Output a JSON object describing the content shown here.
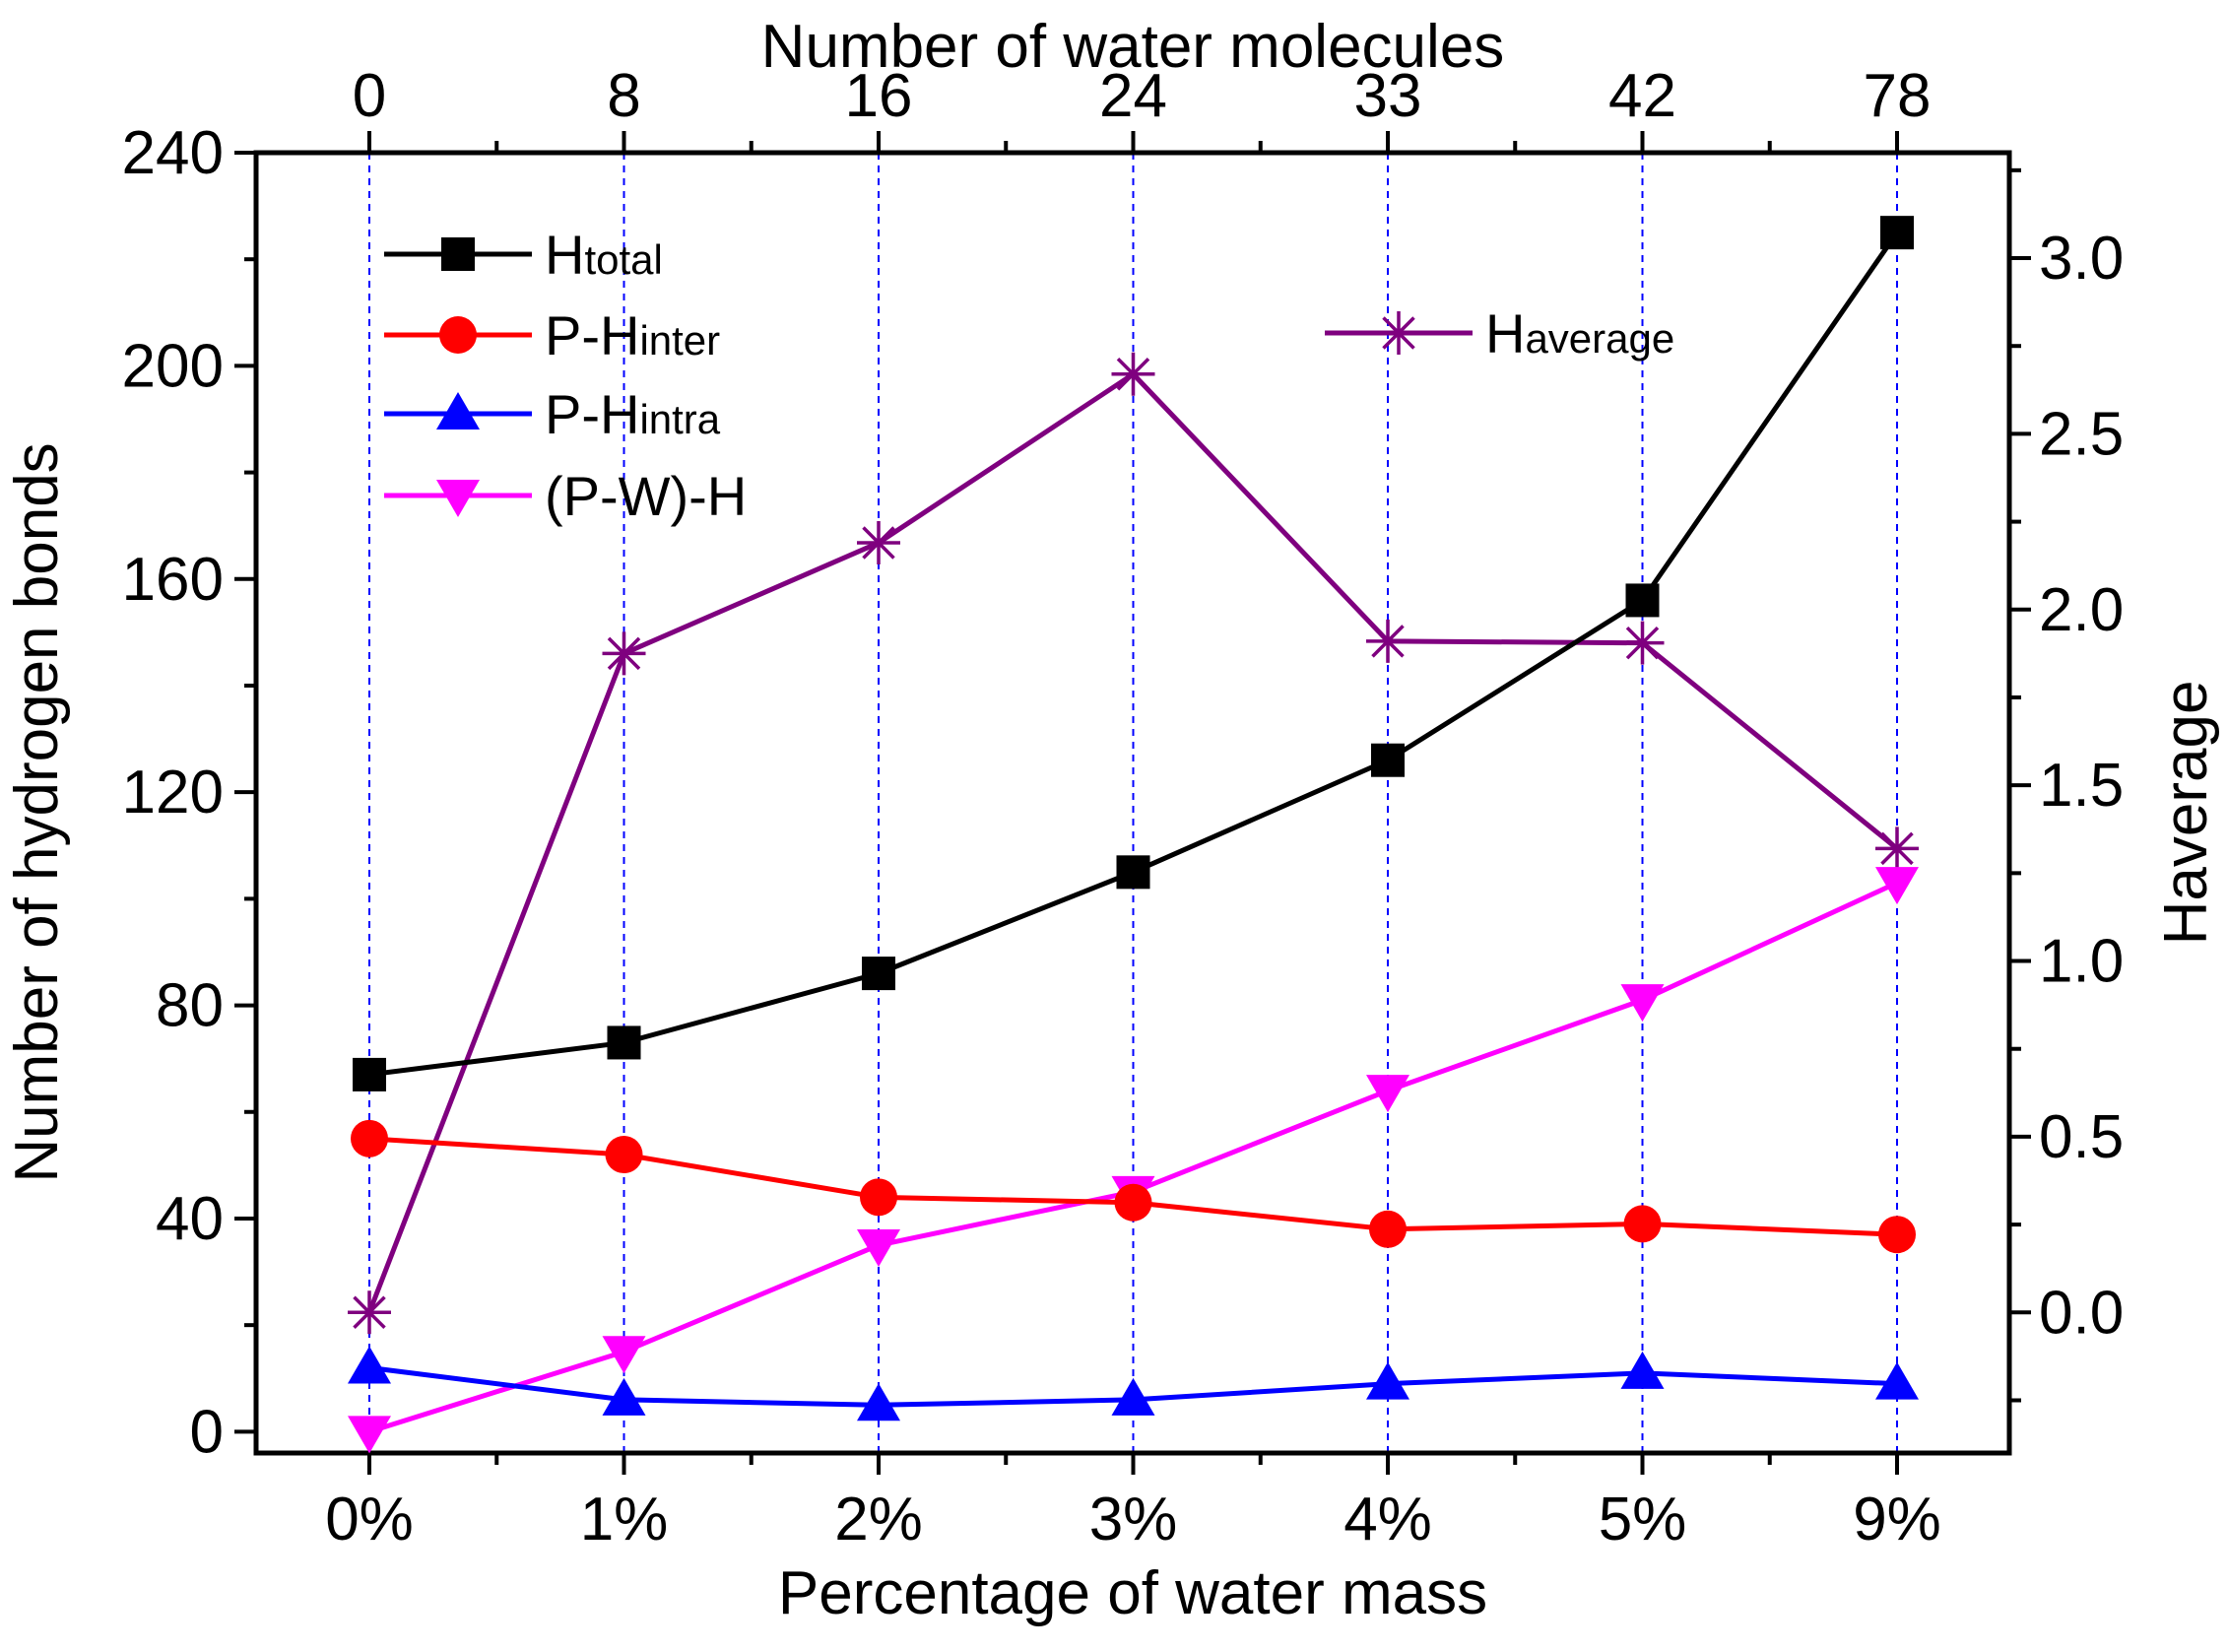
{
  "chart_data": {
    "type": "line",
    "xlabel": "Percentage of water mass",
    "x2label": "Number of water molecules",
    "ylabel": "Number of hydrogen bonds",
    "y2label": "Haverage",
    "categories": [
      "0%",
      "1%",
      "2%",
      "3%",
      "4%",
      "5%",
      "9%"
    ],
    "top_categories": [
      "0",
      "8",
      "16",
      "24",
      "33",
      "42",
      "78"
    ],
    "ylim": [
      -4,
      240
    ],
    "yticks": [
      0,
      40,
      80,
      120,
      160,
      200,
      240
    ],
    "y2lim": [
      -0.4,
      3.3
    ],
    "y2ticks": [
      "0.0",
      "0.5",
      "1.0",
      "1.5",
      "2.0",
      "2.5",
      "3.0"
    ],
    "grid": "vertical dashed at categories",
    "series": [
      {
        "name": "Htotal",
        "label_main": "H",
        "label_sub": "total",
        "color": "#000000",
        "marker": "square",
        "axis": "left",
        "values": [
          67,
          73,
          86,
          105,
          126,
          156,
          225
        ]
      },
      {
        "name": "P-Hinter",
        "label_main": "P-H",
        "label_sub": "inter",
        "color": "#ff0000",
        "marker": "circle",
        "axis": "left",
        "values": [
          55,
          52,
          44,
          43,
          38,
          39,
          37
        ]
      },
      {
        "name": "P-Hintra",
        "label_main": "P-H",
        "label_sub": "intra",
        "color": "#0000ff",
        "marker": "triangle-up",
        "axis": "left",
        "values": [
          12,
          6,
          5,
          6,
          9,
          11,
          9
        ]
      },
      {
        "name": "(P-W)-H",
        "label_main": "(P-W)-H",
        "label_sub": "",
        "color": "#ff00ff",
        "marker": "triangle-down",
        "axis": "left",
        "values": [
          0,
          15,
          35,
          45,
          64,
          81,
          103
        ]
      },
      {
        "name": "Haverage",
        "label_main": "H",
        "label_sub": "average",
        "color": "#7f007f",
        "marker": "asterisk",
        "axis": "right",
        "values": [
          0.0,
          1.875,
          2.19,
          2.67,
          1.91,
          1.905,
          1.32
        ]
      }
    ]
  }
}
